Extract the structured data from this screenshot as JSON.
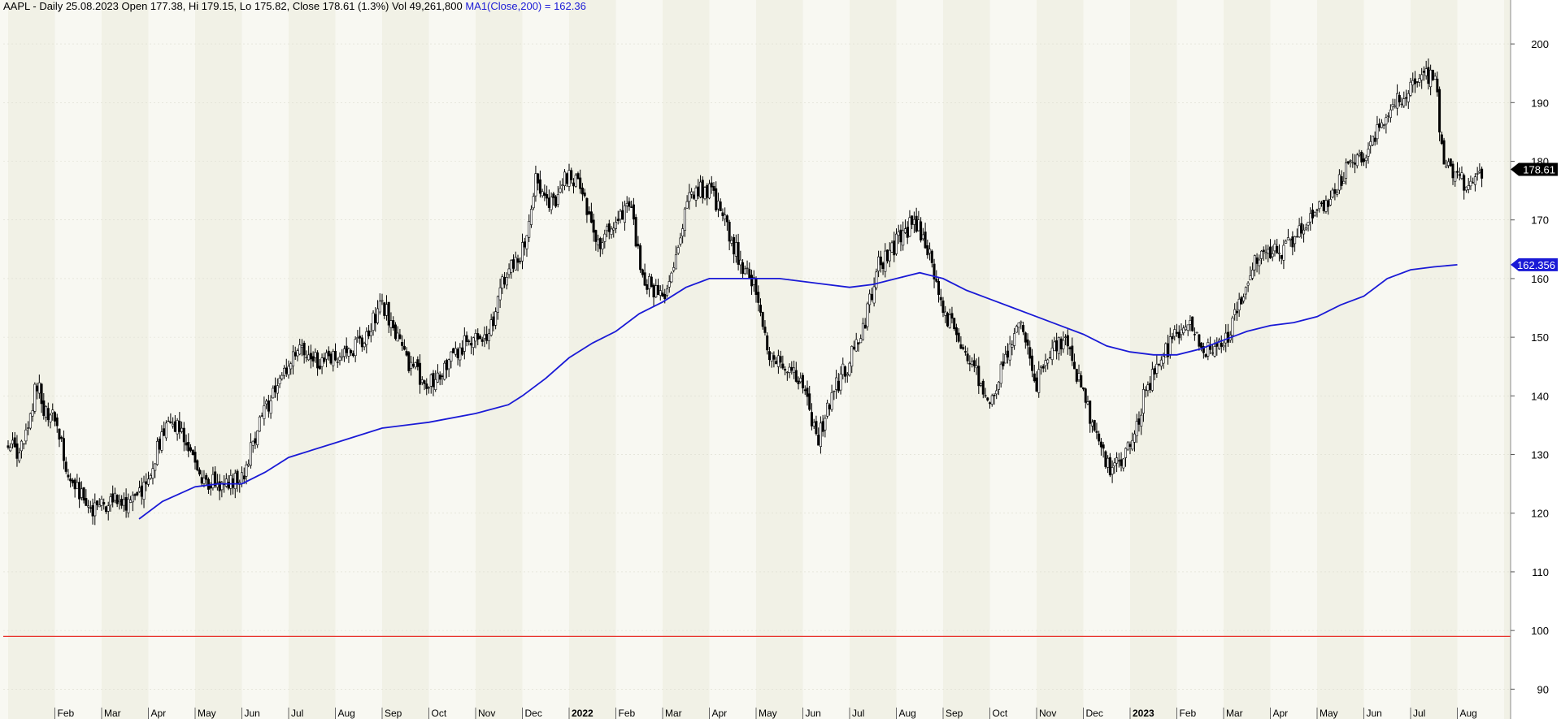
{
  "header": {
    "symbol_info": "AAPL - Daily 25.08.2023 Open 177.38, Hi 179.15, Lo 175.82, Close 178.61 (1.3%) Vol 49,261,800",
    "ma_info": "MA1(Close,200) = 162.36"
  },
  "colors": {
    "background_light": "#f8f8f2",
    "background_dark": "#f1f1e6",
    "candle": "#000000",
    "ma_line": "#1a1ad6",
    "reference_line": "#e8312a",
    "close_badge": "#000000",
    "ma_badge": "#1a1ad6"
  },
  "badges": {
    "close": "178.61",
    "ma": "162.356"
  },
  "chart_data": {
    "type": "candlestick",
    "ticker": "AAPL",
    "interval": "Daily",
    "ylim": [
      87,
      205
    ],
    "y_ticks": [
      90,
      100,
      110,
      120,
      130,
      140,
      150,
      160,
      170,
      180,
      190,
      200
    ],
    "y_tick_labels": [
      "90",
      "100",
      "110",
      "120",
      "130",
      "140",
      "150",
      "160",
      "170",
      "180",
      "190",
      "200"
    ],
    "x_labels": [
      {
        "label": "Feb",
        "m": 1
      },
      {
        "label": "Mar",
        "m": 2
      },
      {
        "label": "Apr",
        "m": 3
      },
      {
        "label": "May",
        "m": 4
      },
      {
        "label": "Jun",
        "m": 5
      },
      {
        "label": "Jul",
        "m": 6
      },
      {
        "label": "Aug",
        "m": 7
      },
      {
        "label": "Sep",
        "m": 8
      },
      {
        "label": "Oct",
        "m": 9
      },
      {
        "label": "Nov",
        "m": 10
      },
      {
        "label": "Dec",
        "m": 11
      },
      {
        "label": "2022",
        "m": 12,
        "bold": true
      },
      {
        "label": "Feb",
        "m": 13
      },
      {
        "label": "Mar",
        "m": 14
      },
      {
        "label": "Apr",
        "m": 15
      },
      {
        "label": "May",
        "m": 16
      },
      {
        "label": "Jun",
        "m": 17
      },
      {
        "label": "Jul",
        "m": 18
      },
      {
        "label": "Aug",
        "m": 19
      },
      {
        "label": "Sep",
        "m": 20
      },
      {
        "label": "Oct",
        "m": 21
      },
      {
        "label": "Nov",
        "m": 22
      },
      {
        "label": "Dec",
        "m": 23
      },
      {
        "label": "2023",
        "m": 24,
        "bold": true
      },
      {
        "label": "Feb",
        "m": 25
      },
      {
        "label": "Mar",
        "m": 26
      },
      {
        "label": "Apr",
        "m": 27
      },
      {
        "label": "May",
        "m": 28
      },
      {
        "label": "Jun",
        "m": 29
      },
      {
        "label": "Jul",
        "m": 30
      },
      {
        "label": "Aug",
        "m": 31
      }
    ],
    "price_path": [
      [
        0,
        132
      ],
      [
        0.25,
        130
      ],
      [
        0.5,
        136
      ],
      [
        0.6,
        143
      ],
      [
        0.75,
        138
      ],
      [
        1,
        136
      ],
      [
        1.3,
        126
      ],
      [
        1.7,
        121
      ],
      [
        2,
        121
      ],
      [
        2.3,
        123
      ],
      [
        2.55,
        121
      ],
      [
        3,
        125
      ],
      [
        3.3,
        134
      ],
      [
        3.7,
        135
      ],
      [
        4,
        128
      ],
      [
        4.3,
        125
      ],
      [
        4.55,
        125
      ],
      [
        5,
        126
      ],
      [
        5.4,
        136
      ],
      [
        6,
        145
      ],
      [
        6.3,
        148
      ],
      [
        6.6,
        146
      ],
      [
        7,
        146
      ],
      [
        7.3,
        148
      ],
      [
        7.6,
        149
      ],
      [
        8,
        156
      ],
      [
        8.3,
        150
      ],
      [
        8.6,
        145
      ],
      [
        9,
        142
      ],
      [
        9.4,
        146
      ],
      [
        9.8,
        149
      ],
      [
        10,
        150
      ],
      [
        10.3,
        151
      ],
      [
        10.6,
        160
      ],
      [
        11,
        165
      ],
      [
        11.3,
        177
      ],
      [
        11.6,
        172
      ],
      [
        12,
        178
      ],
      [
        12.3,
        174
      ],
      [
        12.6,
        166
      ],
      [
        13,
        170
      ],
      [
        13.3,
        172
      ],
      [
        13.6,
        160
      ],
      [
        14,
        157
      ],
      [
        14.3,
        164
      ],
      [
        14.6,
        175
      ],
      [
        15,
        175
      ],
      [
        15.2,
        172
      ],
      [
        15.6,
        164
      ],
      [
        16,
        158
      ],
      [
        16.3,
        146
      ],
      [
        16.6,
        145
      ],
      [
        17,
        142
      ],
      [
        17.3,
        132
      ],
      [
        17.6,
        140
      ],
      [
        18,
        146
      ],
      [
        18.3,
        152
      ],
      [
        18.6,
        162
      ],
      [
        19,
        166
      ],
      [
        19.4,
        170
      ],
      [
        19.7,
        164
      ],
      [
        20,
        155
      ],
      [
        20.3,
        150
      ],
      [
        20.6,
        145
      ],
      [
        21,
        140
      ],
      [
        21.3,
        145
      ],
      [
        21.6,
        153
      ],
      [
        22,
        142
      ],
      [
        22.3,
        148
      ],
      [
        22.6,
        150
      ],
      [
        23,
        140
      ],
      [
        23.3,
        132
      ],
      [
        23.6,
        127
      ],
      [
        24,
        131
      ],
      [
        24.3,
        140
      ],
      [
        24.6,
        145
      ],
      [
        25,
        151
      ],
      [
        25.3,
        152
      ],
      [
        25.6,
        148
      ],
      [
        26,
        148
      ],
      [
        26.3,
        155
      ],
      [
        26.6,
        162
      ],
      [
        27,
        165
      ],
      [
        27.3,
        165
      ],
      [
        27.6,
        168
      ],
      [
        28,
        172
      ],
      [
        28.3,
        174
      ],
      [
        28.6,
        178
      ],
      [
        29,
        181
      ],
      [
        29.3,
        185
      ],
      [
        29.6,
        190
      ],
      [
        30,
        192
      ],
      [
        30.3,
        195
      ],
      [
        30.55,
        194
      ],
      [
        30.65,
        182
      ],
      [
        31,
        177
      ],
      [
        31.3,
        176
      ],
      [
        31.5,
        178.6
      ]
    ],
    "ma200": {
      "label": "MA1(Close,200)",
      "path": [
        [
          2.8,
          119
        ],
        [
          3.3,
          122
        ],
        [
          4,
          124.5
        ],
        [
          4.5,
          125
        ],
        [
          5,
          125
        ],
        [
          5.5,
          127
        ],
        [
          6,
          129.5
        ],
        [
          7,
          132
        ],
        [
          8,
          134.5
        ],
        [
          9,
          135.5
        ],
        [
          10,
          137
        ],
        [
          10.7,
          138.5
        ],
        [
          11,
          140
        ],
        [
          11.5,
          143
        ],
        [
          12,
          146.5
        ],
        [
          12.5,
          149
        ],
        [
          13,
          151
        ],
        [
          13.5,
          154
        ],
        [
          14,
          156
        ],
        [
          14.5,
          158.5
        ],
        [
          15,
          160
        ],
        [
          15.5,
          160
        ],
        [
          16,
          160
        ],
        [
          16.5,
          160
        ],
        [
          17,
          159.5
        ],
        [
          17.5,
          159
        ],
        [
          18,
          158.5
        ],
        [
          18.5,
          159
        ],
        [
          19,
          160
        ],
        [
          19.5,
          161
        ],
        [
          20,
          160
        ],
        [
          20.5,
          158
        ],
        [
          21,
          156.5
        ],
        [
          21.5,
          155
        ],
        [
          22,
          153.5
        ],
        [
          22.5,
          152
        ],
        [
          23,
          150.5
        ],
        [
          23.5,
          148.5
        ],
        [
          24,
          147.5
        ],
        [
          24.5,
          147
        ],
        [
          25,
          147
        ],
        [
          25.5,
          148
        ],
        [
          26,
          149.5
        ],
        [
          26.5,
          151
        ],
        [
          27,
          152
        ],
        [
          27.5,
          152.5
        ],
        [
          28,
          153.5
        ],
        [
          28.5,
          155.5
        ],
        [
          29,
          157
        ],
        [
          29.5,
          160
        ],
        [
          30,
          161.5
        ],
        [
          30.5,
          162
        ],
        [
          31,
          162.36
        ]
      ]
    },
    "reference_line": 99,
    "last_close": 178.61,
    "last_ma": 162.356
  }
}
